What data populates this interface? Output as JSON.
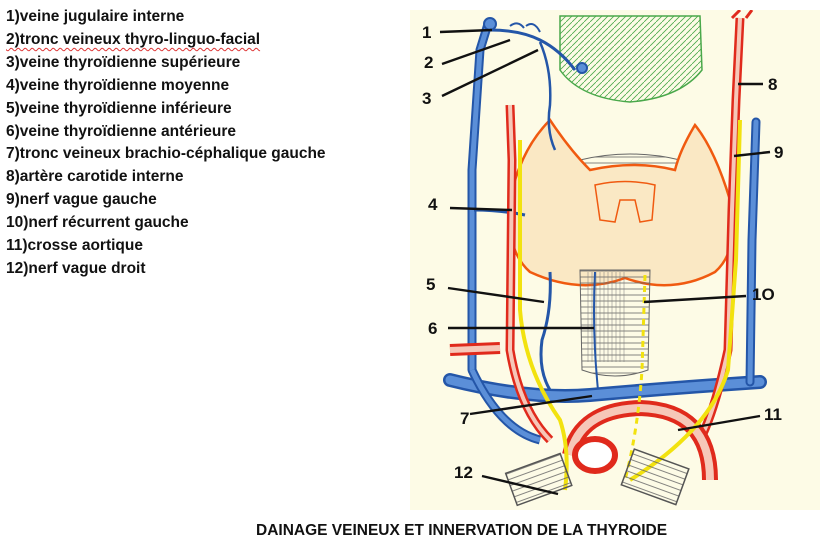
{
  "legend": [
    {
      "text": "1)veine jugulaire interne"
    },
    {
      "text": "2)tronc veineux thyro-linguo-facial"
    },
    {
      "text": "3)veine thyroïdienne supérieure"
    },
    {
      "text": "4)veine thyroïdienne moyenne"
    },
    {
      "text": "5)veine thyroïdienne inférieure"
    },
    {
      "text": "6)veine thyroïdienne antérieure"
    },
    {
      "text": "7)tronc veineux brachio-céphalique gauche"
    },
    {
      "text": "8)artère carotide interne"
    },
    {
      "text": "9)nerf vague gauche"
    },
    {
      "text": "10)nerf récurrent gauche"
    },
    {
      "text": "11)crosse aortique"
    },
    {
      "text": "12)nerf vague droit"
    }
  ],
  "figure_numbers": {
    "n1": "1",
    "n2": "2",
    "n3": "3",
    "n4": "4",
    "n5": "5",
    "n6": "6",
    "n7": "7",
    "n8": "8",
    "n9": "9",
    "n10": "1O",
    "n11": "11",
    "n12": "12"
  },
  "caption": "DAINAGE VEINEUX ET INNERVATION DE LA THYROIDE",
  "colors": {
    "background": "#fdfbe6",
    "vein": "#2456a8",
    "vein_fill": "#5b8fd8",
    "artery": "#e02a1c",
    "nerve": "#f2e20f",
    "cartilage": "#4aa84a",
    "gland_outline": "#f05a10"
  }
}
